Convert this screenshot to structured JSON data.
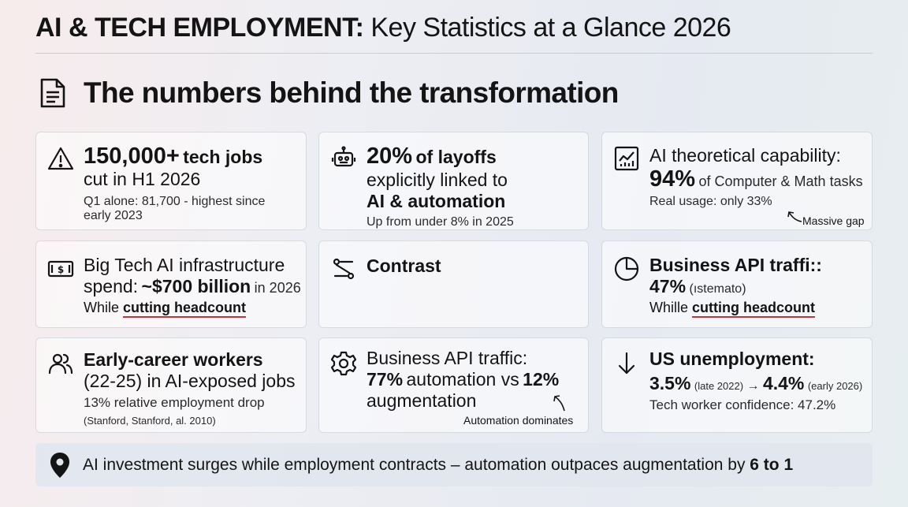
{
  "header": {
    "title_bold": "AI & TECH EMPLOYMENT:",
    "title_rest": "Key Statistics at a Glance 2026",
    "subtitle": "The numbers behind the transformation"
  },
  "cards": {
    "c1": {
      "stat": "150,000+",
      "label_a": "tech jobs",
      "line2": "cut in H1 2026",
      "note": "Q1 alone: 81,700 - highest since",
      "note2": "early 2023"
    },
    "c2": {
      "stat": "20%",
      "label_a": "of layoffs",
      "line2": "explicitly linked to",
      "line3": "AI & automation",
      "note": "Up from under 8% in 2025"
    },
    "c3": {
      "line1": "AI theoretical capability:",
      "stat": "94%",
      "label_a": "of Computer & Math tasks",
      "note": "Real usage: only 33%",
      "callout": "Massive gap"
    },
    "c4": {
      "line1": "Big Tech AI infrastructure",
      "pre": "spend:",
      "stat": "~$700 billion",
      "post": "in 2026",
      "while": "While",
      "highlight": "cutting headcount"
    },
    "c5": {
      "title": "Contrast"
    },
    "c6": {
      "line1": "Business API traffi::",
      "stat": "47%",
      "post": "(ıstemato)",
      "while": "Whille",
      "highlight": "cutting headcount"
    },
    "c7": {
      "line1": "Early-career workers",
      "line2": "(22-25) in AI-exposed jobs",
      "note": "13% relative employment drop",
      "source": "(Stanford, Stanford, al. 2010)"
    },
    "c8": {
      "line1": "Business API traffic:",
      "stat_a": "77%",
      "mid": "automation vs",
      "stat_b": "12%",
      "line3": "augmentation",
      "callout": "Automation dominates"
    },
    "c9": {
      "line1": "US unemployment:",
      "stat_a": "3.5%",
      "sub_a": "(late 2022)",
      "arrow": "→",
      "stat_b": "4.4%",
      "sub_b": "(early 2026)",
      "note": "Tech worker confidence: 47.2%"
    }
  },
  "footer": {
    "text": "AI investment surges while employment contracts – automation outpaces augmentation by",
    "emph": "6 to 1"
  },
  "icons": [
    "document-icon",
    "warning-icon",
    "robot-icon",
    "chart-icon",
    "money-icon",
    "contrast-icon",
    "pie-chart-icon",
    "people-icon",
    "gear-icon",
    "arrow-down-icon",
    "location-pin-icon"
  ],
  "colors": {
    "underline": "#c0343b",
    "text": "#141414"
  }
}
